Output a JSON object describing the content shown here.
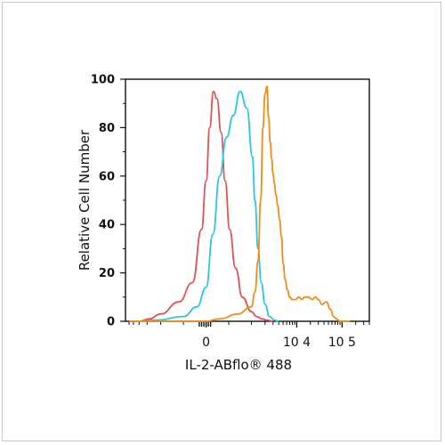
{
  "chart_data": {
    "type": "line",
    "xlabel": "IL-2-ABflo® 488",
    "ylabel": "Relative Cell Number",
    "ylim": [
      0,
      100
    ],
    "yticks": [
      "0",
      "20",
      "40",
      "60",
      "80",
      "100"
    ],
    "x_scale": "biexponential (log above 10^3)",
    "xlim": [
      -6000,
      400000
    ],
    "xticks": [
      {
        "value": 0,
        "label": "0"
      },
      {
        "value": 10000,
        "label": "10 4"
      },
      {
        "value": 100000,
        "label": "10 5"
      }
    ],
    "grid": false,
    "legend": "none",
    "series": [
      {
        "color": "#e05252",
        "x": [
          -3000,
          -1800,
          -1000,
          -600,
          -300,
          -100,
          0,
          80,
          160,
          240,
          330,
          420,
          520,
          650,
          800,
          1000,
          1300,
          1700,
          2200,
          3000
        ],
        "y": [
          0,
          1,
          3,
          8,
          16,
          38,
          58,
          80,
          95,
          92,
          78,
          58,
          38,
          22,
          10,
          4,
          2,
          1,
          0.5,
          0
        ]
      },
      {
        "color": "#29c5e6",
        "x": [
          -3000,
          -1200,
          -500,
          -200,
          0,
          150,
          300,
          450,
          600,
          750,
          900,
          1050,
          1200,
          1400,
          1650,
          2000,
          2500,
          3200,
          4000
        ],
        "y": [
          0,
          0.5,
          2,
          6,
          14,
          36,
          60,
          76,
          85,
          95,
          88,
          68,
          50,
          30,
          16,
          7,
          2,
          0.5,
          0
        ]
      },
      {
        "color": "#f08c19",
        "x": [
          -5000,
          -1000,
          0,
          300,
          700,
          1000,
          1200,
          1400,
          1600,
          1800,
          2000,
          2200,
          2400,
          2600,
          2800,
          3000,
          3200,
          3500,
          3800,
          4200,
          4600,
          5000,
          5600,
          6200,
          7000,
          8000,
          9500,
          11000,
          13000,
          15000,
          18000,
          22000,
          26000,
          30000,
          36000,
          45000,
          55000,
          65000,
          75000,
          90000,
          110000,
          150000
        ],
        "y": [
          0,
          0,
          0,
          1,
          3,
          6,
          12,
          25,
          50,
          80,
          94,
          97,
          84,
          74,
          67,
          61,
          57,
          52,
          48,
          42,
          35,
          24,
          17,
          13,
          10,
          9,
          9,
          10,
          9,
          10,
          10,
          9,
          10,
          9,
          7,
          8,
          5,
          2,
          1,
          0,
          0,
          0
        ]
      }
    ]
  }
}
